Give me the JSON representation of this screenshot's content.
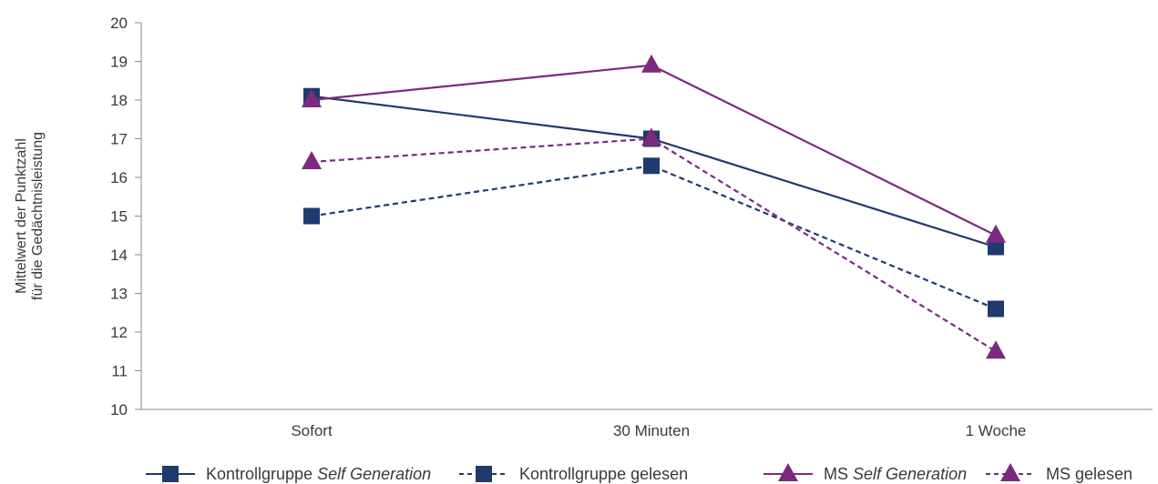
{
  "chart_data": {
    "type": "line",
    "categories": [
      "Sofort",
      "30 Minuten",
      "1 Woche"
    ],
    "ylabel_lines": [
      "Mittelwert der Punktzahl",
      "für die Gedächtnisleistung"
    ],
    "xlabel": "",
    "ylim": [
      10,
      20
    ],
    "yticks": [
      10,
      11,
      12,
      13,
      14,
      15,
      16,
      17,
      18,
      19,
      20
    ],
    "grid": false,
    "legend_position": "bottom",
    "series": [
      {
        "name_prefix": "Kontrollgruppe ",
        "name_italic": "Self Generation",
        "values": [
          18.1,
          17.0,
          14.2
        ],
        "color": "#1f3a6e",
        "dashed": false,
        "marker": "square"
      },
      {
        "name_prefix": "Kontrollgruppe gelesen",
        "name_italic": "",
        "values": [
          15.0,
          16.3,
          12.6
        ],
        "color": "#1f3a6e",
        "dashed": true,
        "marker": "square"
      },
      {
        "name_prefix": "MS ",
        "name_italic": "Self Generation",
        "values": [
          18.0,
          18.9,
          14.5
        ],
        "color": "#7b2a7f",
        "dashed": false,
        "marker": "triangle"
      },
      {
        "name_prefix": "MS gelesen",
        "name_italic": "",
        "values": [
          16.4,
          17.0,
          11.5
        ],
        "color": "#7b2a7f",
        "dashed": true,
        "marker": "triangle"
      }
    ]
  }
}
